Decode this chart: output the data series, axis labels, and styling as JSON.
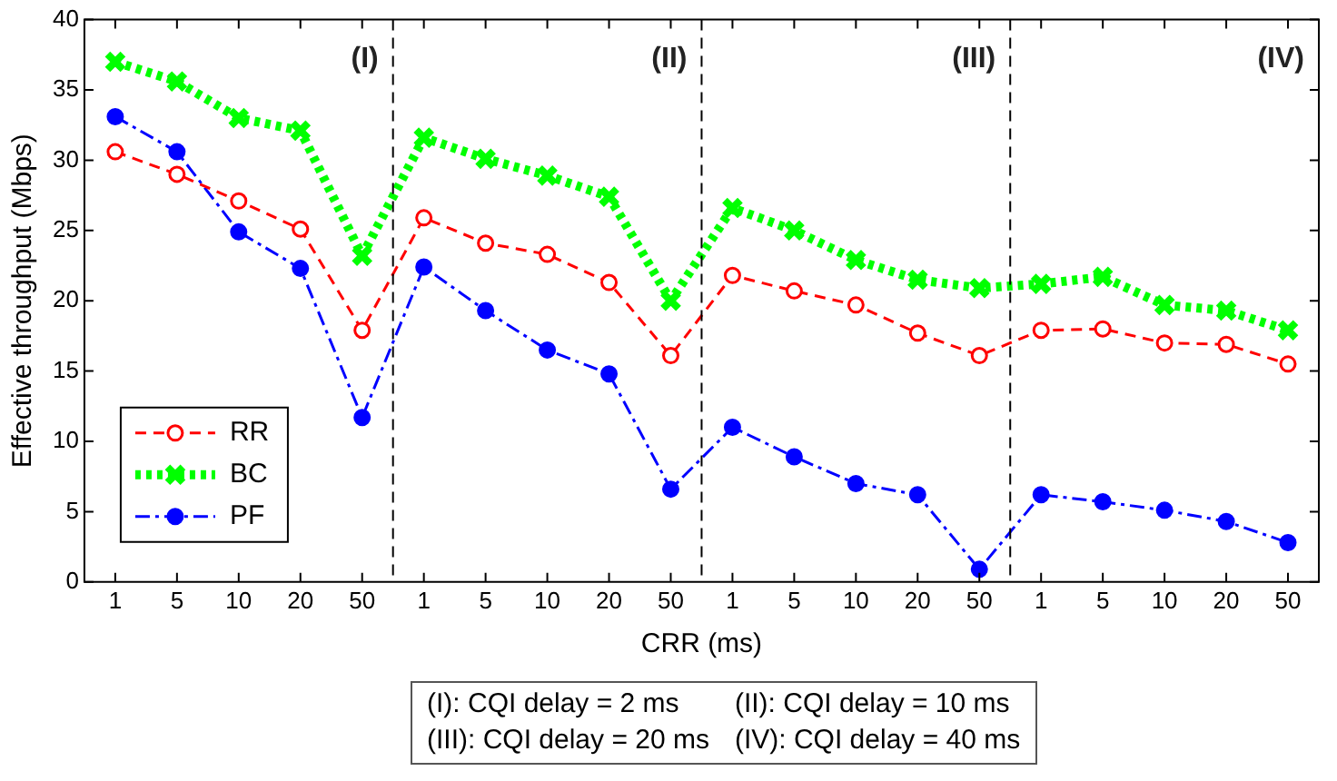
{
  "chart_data": {
    "type": "line",
    "xlabel": "CRR (ms)",
    "ylabel": "Effective throughput (Mbps)",
    "categories": [
      "1",
      "5",
      "10",
      "20",
      "50",
      "1",
      "5",
      "10",
      "20",
      "50",
      "1",
      "5",
      "10",
      "20",
      "50",
      "1",
      "5",
      "10",
      "20",
      "50"
    ],
    "ylim": [
      0,
      40
    ],
    "yticks": [
      0,
      5,
      10,
      15,
      20,
      25,
      30,
      35,
      40
    ],
    "series": [
      {
        "name": "RR",
        "color": "#ff0000",
        "marker": "circle",
        "line_style": "dashed",
        "values": [
          30.6,
          29.0,
          27.1,
          25.1,
          17.9,
          25.9,
          24.1,
          23.3,
          21.3,
          16.1,
          21.8,
          20.7,
          19.7,
          17.7,
          16.1,
          17.9,
          18.0,
          17.0,
          16.9,
          15.5
        ]
      },
      {
        "name": "BC",
        "color": "#00ff00",
        "marker": "cross",
        "line_style": "dotted",
        "values": [
          37.0,
          35.6,
          33.0,
          32.1,
          23.2,
          31.6,
          30.1,
          28.9,
          27.4,
          20.0,
          26.6,
          25.0,
          22.9,
          21.5,
          20.9,
          21.2,
          21.7,
          19.7,
          19.3,
          17.9
        ]
      },
      {
        "name": "PF",
        "color": "#0000ff",
        "marker": "circle",
        "line_style": "dashdot",
        "values": [
          33.1,
          30.6,
          24.9,
          22.3,
          11.7,
          22.4,
          19.3,
          16.5,
          14.8,
          6.6,
          11.0,
          8.9,
          7.0,
          6.2,
          0.9,
          6.2,
          5.7,
          5.1,
          4.3,
          2.8
        ]
      }
    ],
    "annotations": [
      "(I)",
      "(II)",
      "(III)",
      "(IV)",
      "(I): CQI delay = 2 ms",
      "(II): CQI delay = 10 ms",
      "(III): CQI delay = 20 ms",
      "(IV): CQI delay = 40 ms"
    ],
    "legend": "bottom left",
    "grid": false
  }
}
